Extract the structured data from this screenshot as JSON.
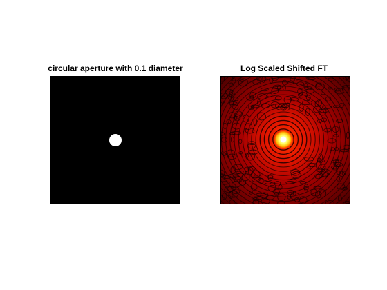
{
  "figure": {
    "panels": [
      {
        "title": "circular aperture with 0.1 diameter",
        "image": "white-disk-on-black",
        "colors": {
          "background": "#000000",
          "aperture": "#ffffff"
        },
        "aperture_diameter": 0.1
      },
      {
        "title": "Log Scaled Shifted FT",
        "image": "airy-ring-pattern",
        "colormap": "hot",
        "colors": {
          "dark": "#120000",
          "mid": "#9a0000",
          "bright": "#ff2a00",
          "peak": "#ffffff"
        }
      }
    ]
  }
}
